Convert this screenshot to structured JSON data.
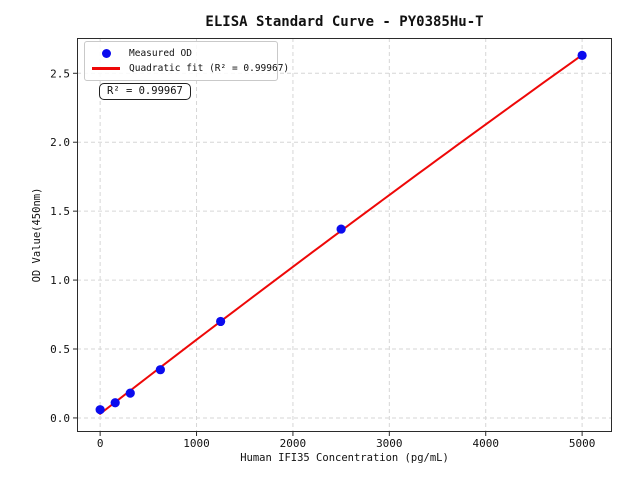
{
  "figure_title": "ELISA Standard Curve - PY0385Hu-T",
  "chart_data": {
    "type": "scatter",
    "title": "ELISA Standard Curve - PY0385Hu-T",
    "xlabel": "Human IFI35 Concentration (pg/mL)",
    "ylabel": "OD Value(450nm)",
    "xlim": [
      -240,
      5310
    ],
    "ylim": [
      -0.102,
      2.756
    ],
    "x_ticks": [
      0,
      1000,
      2000,
      3000,
      4000,
      5000
    ],
    "y_ticks": [
      0.0,
      0.5,
      1.0,
      1.5,
      2.0,
      2.5
    ],
    "grid": true,
    "grid_style": "dashed",
    "legend_position": "upper left",
    "annotation": "R² = 0.99967",
    "r_squared": 0.99967,
    "colors": {
      "measured": "#0b0bee",
      "fit": "#ee0808",
      "grid": "#d6d6d6",
      "spine": "#2b2b2b",
      "tick_text": "#111111"
    },
    "series": [
      {
        "name": "Measured OD",
        "type": "scatter",
        "marker": "circle",
        "x": [
          0,
          156.25,
          312.5,
          625,
          1250,
          2500,
          5000
        ],
        "y": [
          0.06,
          0.11,
          0.18,
          0.35,
          0.7,
          1.37,
          2.63
        ]
      },
      {
        "name": "Quadratic fit (R² = 0.99967)",
        "type": "line",
        "fit_coefficients": {
          "c0": 0.0298,
          "c1": 0.00054171,
          "c2": -4.2228e-09
        },
        "x_range": [
          0,
          5000
        ]
      }
    ]
  },
  "legend": {
    "measured_label": "Measured OD",
    "fit_label": "Quadratic fit (R² = 0.99967)"
  },
  "annotation": {
    "text": "R² = 0.99967"
  }
}
